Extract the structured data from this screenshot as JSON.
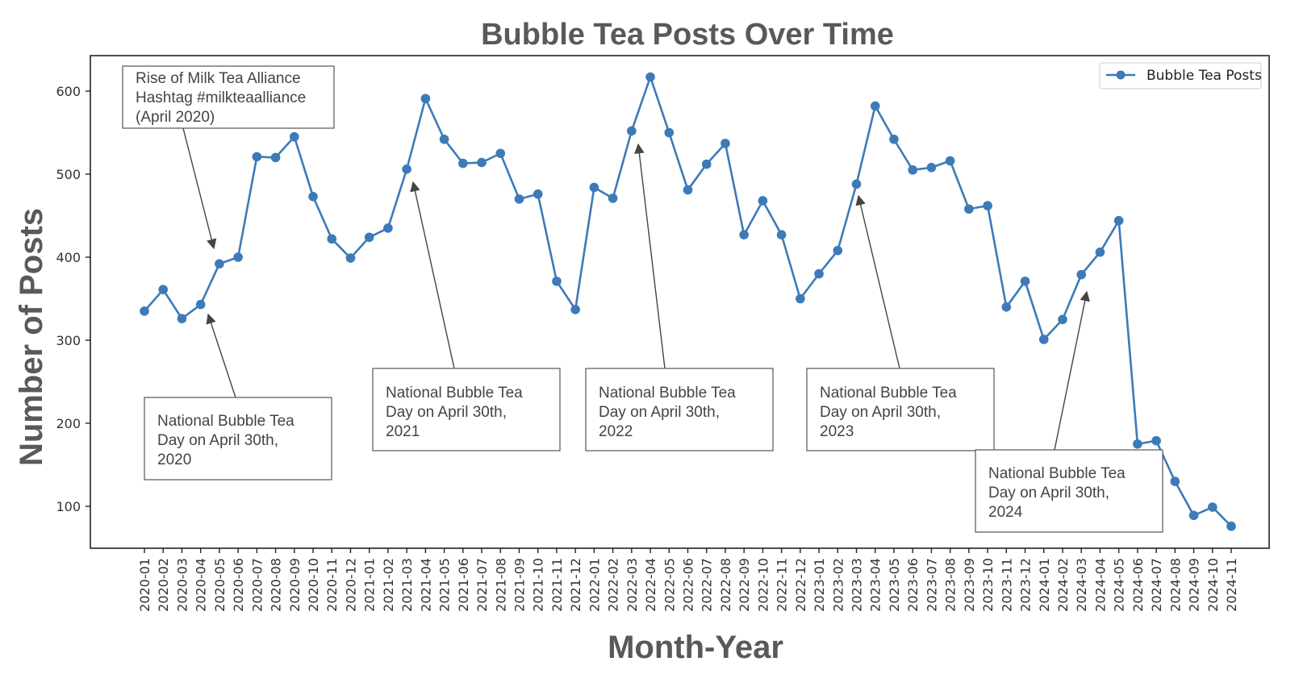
{
  "chart_data": {
    "type": "line",
    "title": "Bubble Tea Posts Over Time",
    "xlabel": "Month-Year",
    "ylabel": "Number of Posts",
    "ylim": [
      50,
      645
    ],
    "yticks": [
      100,
      200,
      300,
      400,
      500,
      600
    ],
    "grid": false,
    "legend_position": "top-right",
    "color": "#3d7ab8",
    "categories": [
      "2020-01",
      "2020-02",
      "2020-03",
      "2020-04",
      "2020-05",
      "2020-06",
      "2020-07",
      "2020-08",
      "2020-09",
      "2020-10",
      "2020-11",
      "2020-12",
      "2021-01",
      "2021-02",
      "2021-03",
      "2021-04",
      "2021-05",
      "2021-06",
      "2021-07",
      "2021-08",
      "2021-09",
      "2021-10",
      "2021-11",
      "2021-12",
      "2022-01",
      "2022-02",
      "2022-03",
      "2022-04",
      "2022-05",
      "2022-06",
      "2022-07",
      "2022-08",
      "2022-09",
      "2022-10",
      "2022-11",
      "2022-12",
      "2023-01",
      "2023-02",
      "2023-03",
      "2023-04",
      "2023-05",
      "2023-06",
      "2023-07",
      "2023-08",
      "2023-09",
      "2023-10",
      "2023-11",
      "2023-12",
      "2024-01",
      "2024-02",
      "2024-03",
      "2024-04",
      "2024-05",
      "2024-06",
      "2024-07",
      "2024-08",
      "2024-09",
      "2024-10",
      "2024-11"
    ],
    "series": [
      {
        "name": "Bubble Tea Posts",
        "values": [
          335,
          361,
          326,
          343,
          392,
          400,
          521,
          520,
          545,
          473,
          422,
          399,
          424,
          435,
          506,
          591,
          542,
          513,
          514,
          525,
          470,
          476,
          371,
          337,
          484,
          471,
          552,
          617,
          550,
          481,
          512,
          537,
          427,
          468,
          427,
          350,
          380,
          408,
          488,
          582,
          542,
          505,
          508,
          516,
          458,
          462,
          340,
          371,
          301,
          325,
          379,
          406,
          444,
          175,
          179,
          130,
          89,
          99,
          76
        ]
      }
    ],
    "annotations": [
      {
        "text": [
          "Rise of Milk Tea Alliance",
          "Hashtag #milkteaalliance",
          "(April 2020)"
        ],
        "target_index": 4
      },
      {
        "text": [
          "National Bubble Tea",
          "Day on April 30th,",
          "2020"
        ],
        "target_index": 3
      },
      {
        "text": [
          "National Bubble Tea",
          "Day on April 30th,",
          "2021"
        ],
        "target_index": 14
      },
      {
        "text": [
          "National Bubble Tea",
          "Day on April 30th,",
          "2022"
        ],
        "target_index": 26
      },
      {
        "text": [
          "National Bubble Tea",
          "Day on April 30th,",
          "2023"
        ],
        "target_index": 38
      },
      {
        "text": [
          "National Bubble Tea",
          "Day on April 30th,",
          "2024"
        ],
        "target_index": 50
      }
    ]
  }
}
